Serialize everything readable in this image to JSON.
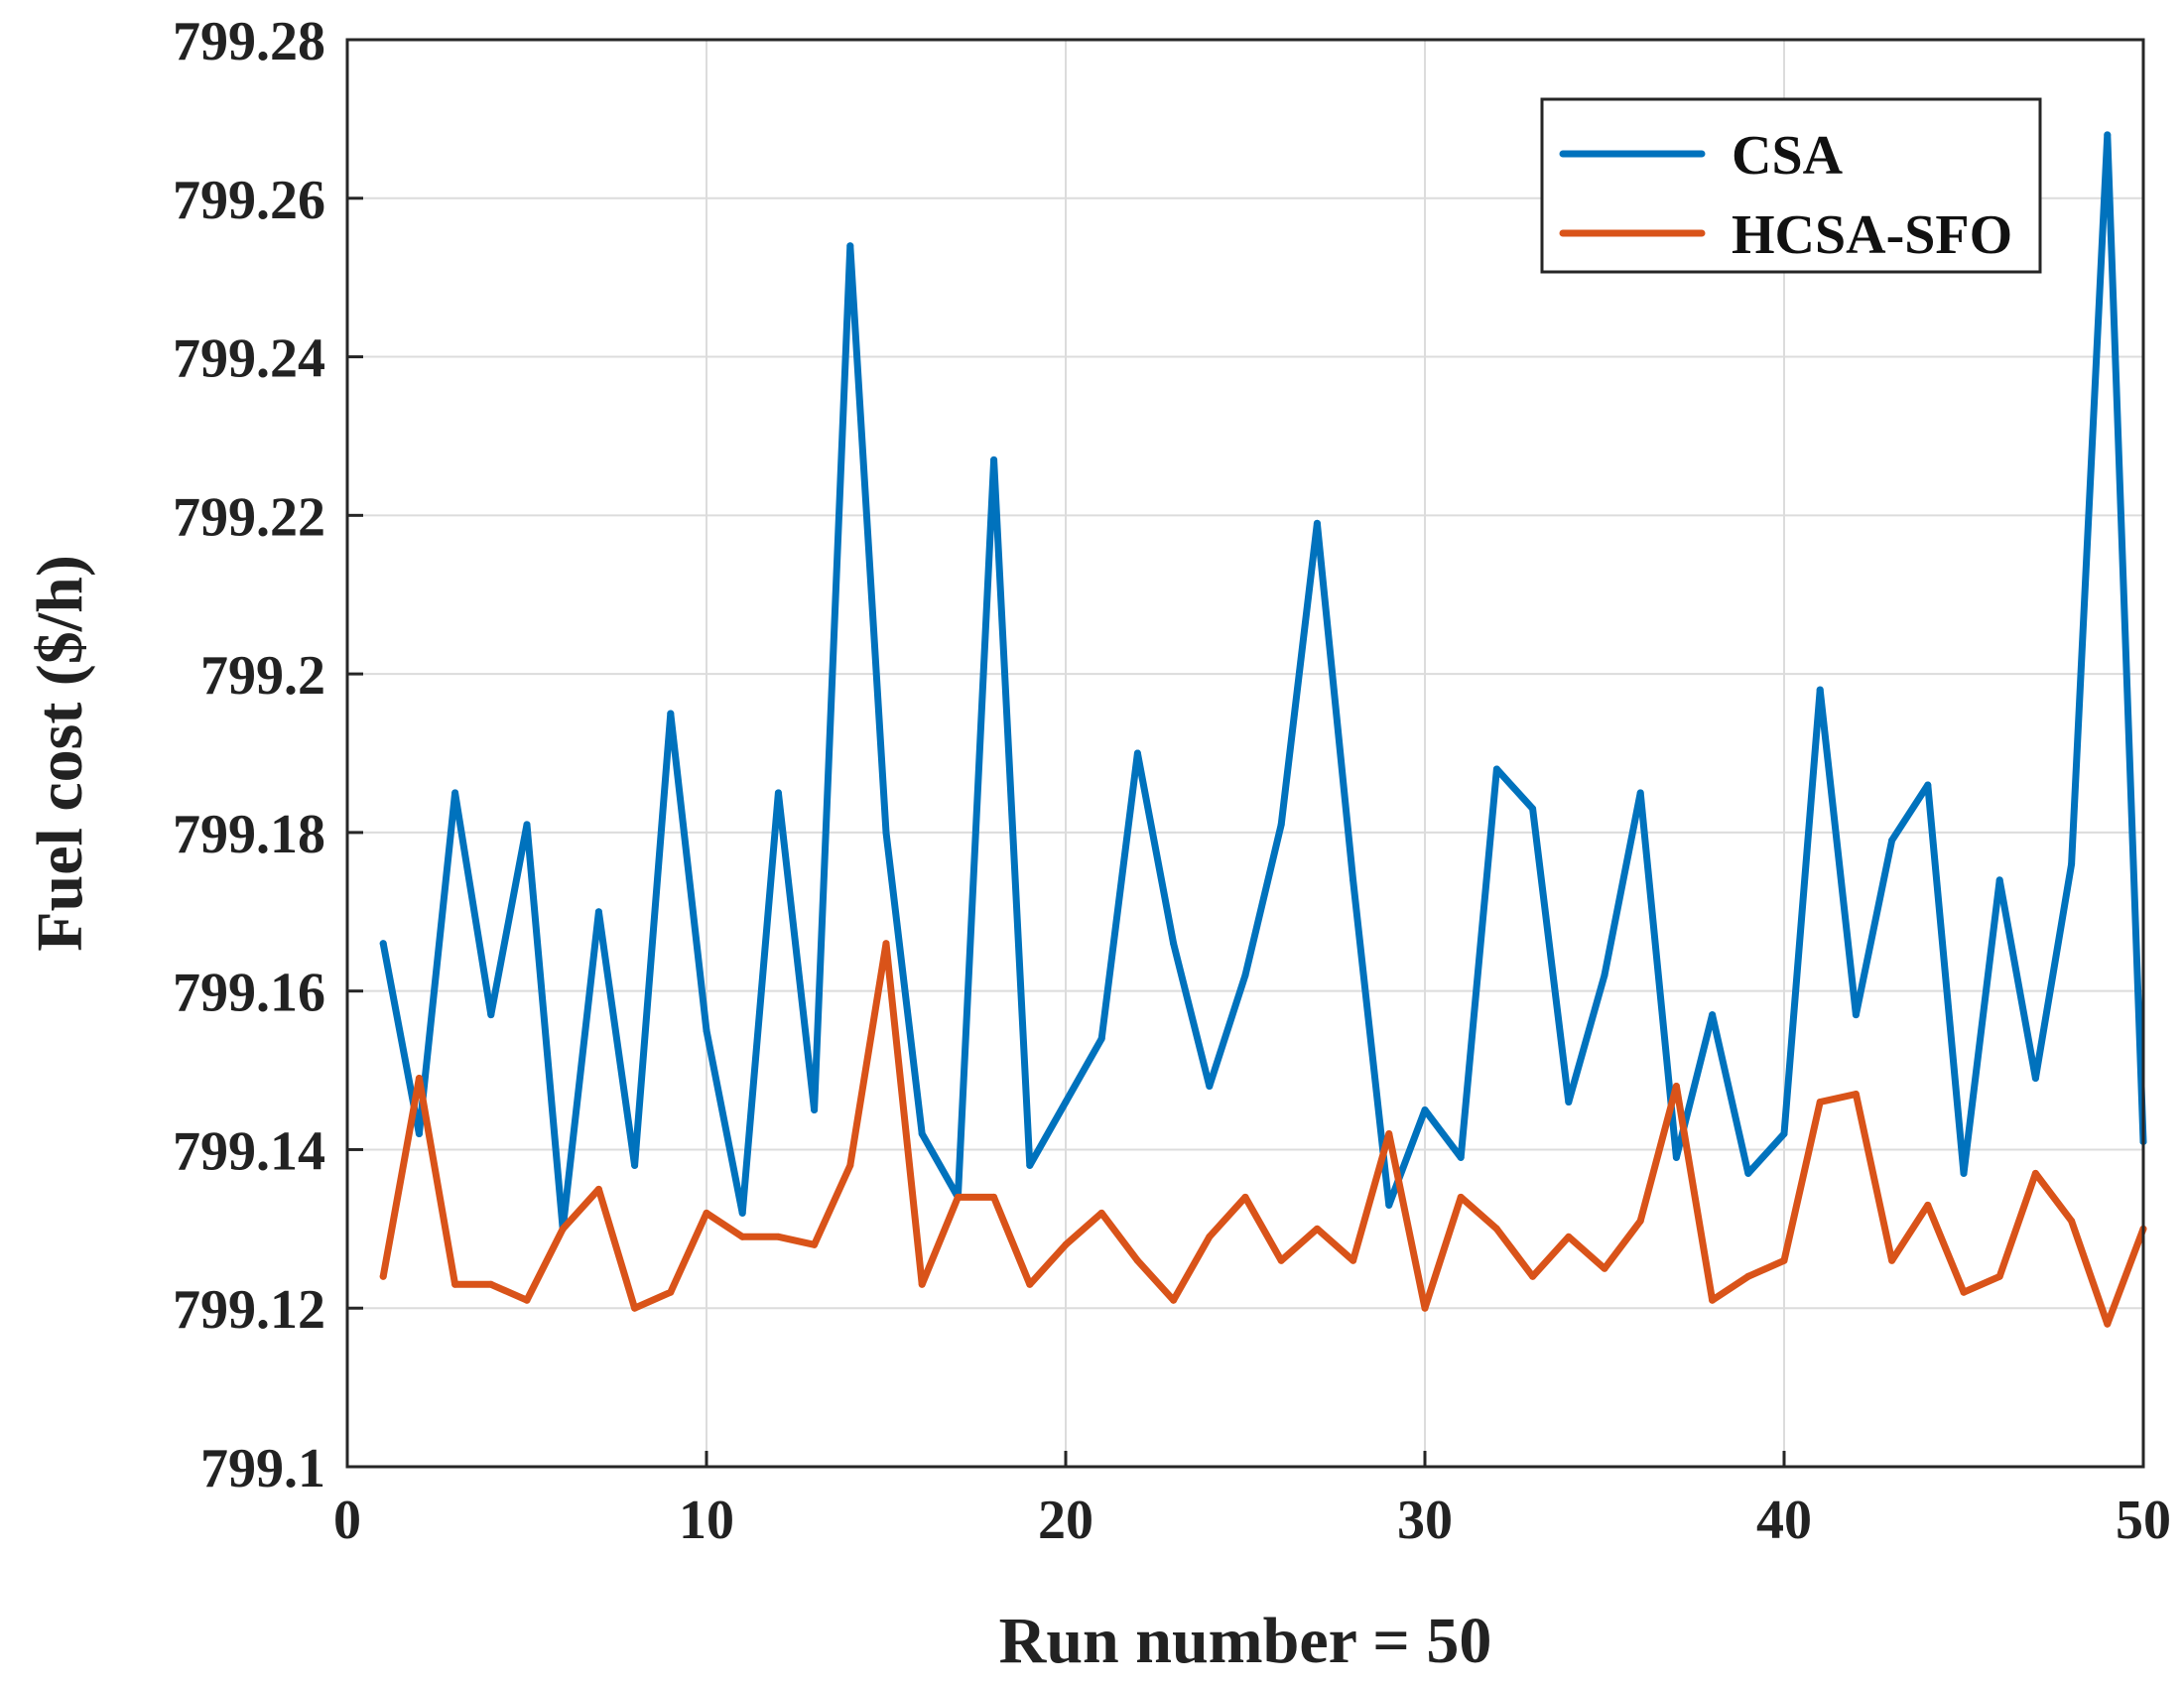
{
  "chart_data": {
    "type": "line",
    "title": "",
    "xlabel": "Run number = 50",
    "ylabel": "Fuel cost ($/h)",
    "xlim": [
      0,
      50
    ],
    "ylim": [
      799.1,
      799.28
    ],
    "xticks": [
      0,
      10,
      20,
      30,
      40,
      50
    ],
    "xtick_labels": [
      "0",
      "10",
      "20",
      "30",
      "40",
      "50"
    ],
    "yticks": [
      799.1,
      799.12,
      799.14,
      799.16,
      799.18,
      799.2,
      799.22,
      799.24,
      799.26,
      799.28
    ],
    "ytick_labels": [
      "799.1",
      "799.12",
      "799.14",
      "799.16",
      "799.18",
      "799.2",
      "799.22",
      "799.24",
      "799.26",
      "799.28"
    ],
    "grid": true,
    "legend_position": "top-right",
    "x": [
      1,
      2,
      3,
      4,
      5,
      6,
      7,
      8,
      9,
      10,
      11,
      12,
      13,
      14,
      15,
      16,
      17,
      18,
      19,
      20,
      21,
      22,
      23,
      24,
      25,
      26,
      27,
      28,
      29,
      30,
      31,
      32,
      33,
      34,
      35,
      36,
      37,
      38,
      39,
      40,
      41,
      42,
      43,
      44,
      45,
      46,
      47,
      48,
      49,
      50
    ],
    "series": [
      {
        "name": "CSA",
        "color": "#0072BD",
        "values": [
          799.166,
          799.142,
          799.185,
          799.157,
          799.181,
          799.13,
          799.17,
          799.138,
          799.195,
          799.155,
          799.132,
          799.185,
          799.145,
          799.254,
          799.18,
          799.142,
          799.134,
          799.227,
          799.138,
          799.146,
          799.154,
          799.19,
          799.166,
          799.148,
          799.162,
          799.181,
          799.219,
          799.174,
          799.133,
          799.145,
          799.139,
          799.188,
          799.183,
          799.146,
          799.162,
          799.185,
          799.139,
          799.157,
          799.137,
          799.142,
          799.198,
          799.157,
          799.179,
          799.186,
          799.137,
          799.174,
          799.149,
          799.176,
          799.268,
          799.141
        ]
      },
      {
        "name": "HCSA-SFO",
        "color": "#D95319",
        "values": [
          799.124,
          799.149,
          799.123,
          799.123,
          799.121,
          799.13,
          799.135,
          799.12,
          799.122,
          799.132,
          799.129,
          799.129,
          799.128,
          799.138,
          799.166,
          799.123,
          799.134,
          799.134,
          799.123,
          799.128,
          799.132,
          799.126,
          799.121,
          799.129,
          799.134,
          799.126,
          799.13,
          799.126,
          799.142,
          799.12,
          799.134,
          799.13,
          799.124,
          799.129,
          799.125,
          799.131,
          799.148,
          799.121,
          799.124,
          799.126,
          799.146,
          799.147,
          799.126,
          799.133,
          799.122,
          799.124,
          799.137,
          799.131,
          799.118,
          799.13
        ]
      }
    ]
  }
}
